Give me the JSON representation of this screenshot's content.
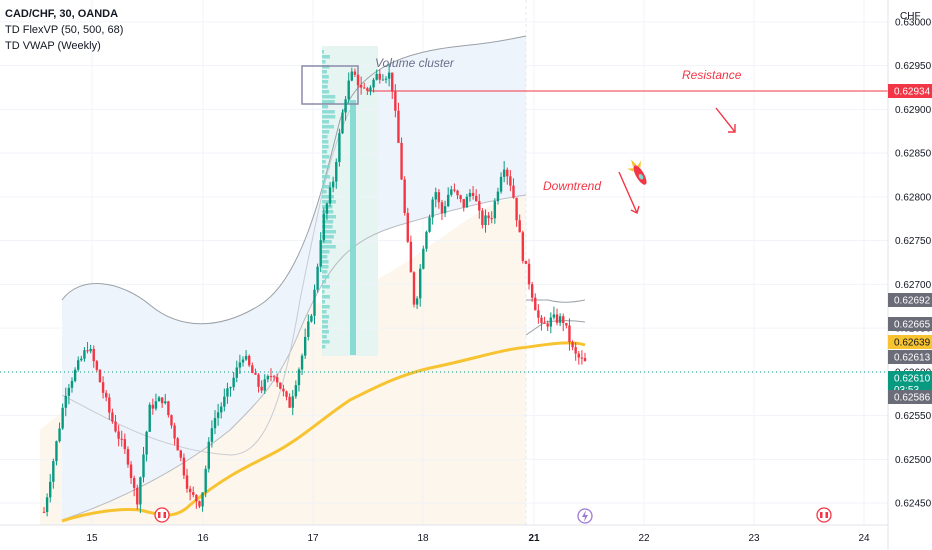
{
  "legend": {
    "symbol": "CAD/CHF, 30, OANDA",
    "indicator1": "TD FlexVP (50, 500, 68)",
    "indicator2": "TD VWAP (Weekly)"
  },
  "currency_label": "CHF",
  "annotations": {
    "volume_cluster": "Volume cluster",
    "resistance": "Resistance",
    "downtrend": "Downtrend"
  },
  "colors": {
    "up": "#089981",
    "down": "#f23645",
    "vwap": "#f7c331",
    "resistance": "#f23645",
    "volume_profile": "#7fd8cf",
    "value_area": "#e6f4f2",
    "band_fill": "#eef4fb",
    "lower_fill": "#fdf6ec",
    "price_label_bg": "#089981"
  },
  "chart_data": {
    "type": "candlestick",
    "symbol": "CAD/CHF",
    "timeframe": "30",
    "exchange": "OANDA",
    "x_ticks": [
      "15",
      "16",
      "17",
      "18",
      "21",
      "22",
      "23",
      "24"
    ],
    "y_ticks": [
      "0.62450",
      "0.62500",
      "0.62550",
      "0.62600",
      "0.62650",
      "0.62700",
      "0.62750",
      "0.62800",
      "0.62850",
      "0.62900",
      "0.62950",
      "0.63000"
    ],
    "ylim": [
      0.62425,
      0.63025
    ],
    "price_labels": [
      {
        "value": "0.62934",
        "style": "red"
      },
      {
        "value": "0.62692",
        "style": "gray"
      },
      {
        "value": "0.62665",
        "style": "gray"
      },
      {
        "value": "0.62639",
        "style": "yellow"
      },
      {
        "value": "0.62613",
        "style": "gray"
      },
      {
        "value": "0.62610",
        "style": "green",
        "subtext": "03:53"
      },
      {
        "value": "0.62586",
        "style": "gray"
      }
    ],
    "resistance_level": 0.62934,
    "last_price": 0.6261,
    "countdown": "03:53",
    "price_path": [
      [
        0,
        0.6244
      ],
      [
        0.5,
        0.6258
      ],
      [
        1,
        0.6263
      ],
      [
        1.2,
        0.626
      ],
      [
        1.5,
        0.6255
      ],
      [
        1.9,
        0.625
      ],
      [
        2.1,
        0.6245
      ],
      [
        2.4,
        0.6256
      ],
      [
        2.7,
        0.6257
      ],
      [
        3.0,
        0.6252
      ],
      [
        3.3,
        0.6246
      ],
      [
        3.55,
        0.6245
      ],
      [
        3.8,
        0.6254
      ],
      [
        4.2,
        0.6258
      ],
      [
        4.5,
        0.6262
      ],
      [
        4.9,
        0.6258
      ],
      [
        5.2,
        0.626
      ],
      [
        5.55,
        0.6256
      ],
      [
        5.85,
        0.6262
      ],
      [
        6.1,
        0.6268
      ],
      [
        6.3,
        0.6277
      ],
      [
        6.55,
        0.6282
      ],
      [
        6.8,
        0.6291
      ],
      [
        6.95,
        0.6294
      ],
      [
        7.3,
        0.6292
      ],
      [
        7.55,
        0.6294
      ],
      [
        7.85,
        0.6294
      ],
      [
        8.05,
        0.6285
      ],
      [
        8.2,
        0.6276
      ],
      [
        8.4,
        0.6267
      ],
      [
        8.6,
        0.6275
      ],
      [
        8.85,
        0.6281
      ],
      [
        9.0,
        0.6278
      ],
      [
        9.2,
        0.6281
      ],
      [
        9.5,
        0.6279
      ],
      [
        9.7,
        0.6281
      ],
      [
        9.9,
        0.6277
      ],
      [
        10.15,
        0.6278
      ],
      [
        10.4,
        0.6284
      ],
      [
        10.6,
        0.6281
      ],
      [
        10.85,
        0.6273
      ],
      [
        11.05,
        0.6269
      ],
      [
        11.25,
        0.6265
      ],
      [
        11.5,
        0.6266
      ],
      [
        11.75,
        0.6266
      ],
      [
        12.0,
        0.6262
      ],
      [
        12.25,
        0.6261
      ]
    ]
  }
}
